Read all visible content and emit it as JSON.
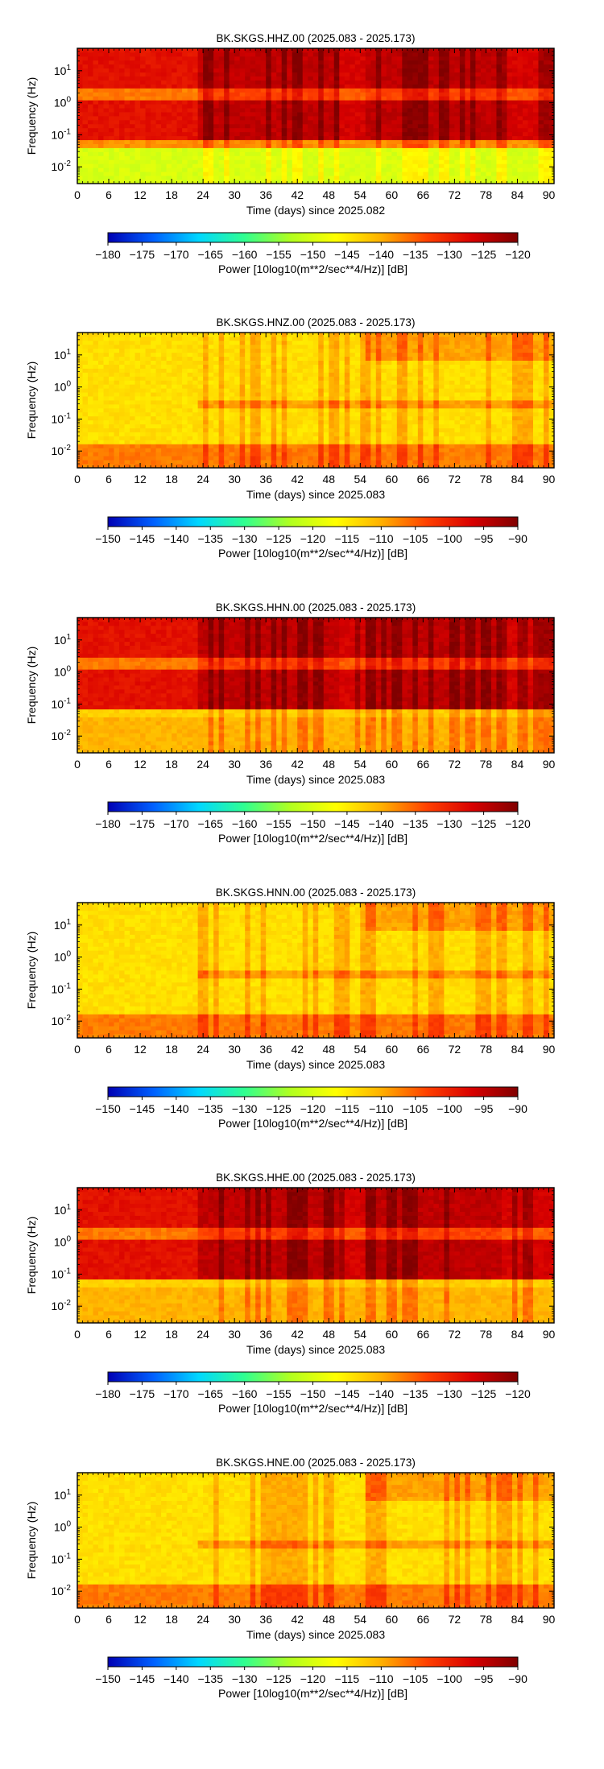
{
  "chart_data": [
    {
      "type": "heatmap",
      "title": "BK.SKGS.HHZ.00 (2025.083 - 2025.173)",
      "xlabel": "Time (days) since 2025.082",
      "ylabel": "Frequency (Hz)",
      "x_ticks": [
        "0",
        "6",
        "12",
        "18",
        "24",
        "30",
        "36",
        "42",
        "48",
        "54",
        "60",
        "66",
        "72",
        "78",
        "84",
        "90"
      ],
      "y_ticks": [
        {
          "base": "10",
          "exp": "1"
        },
        {
          "base": "10",
          "exp": "0"
        },
        {
          "base": "10",
          "exp": "-1"
        },
        {
          "base": "10",
          "exp": "-2"
        }
      ],
      "xlim": [
        0,
        91
      ],
      "ylim_hz": [
        0.003,
        50
      ],
      "yscale": "log",
      "colorbar": {
        "label": "Power [10log10(m**2/sec**4/Hz)] [dB]",
        "ticks": [
          "-180",
          "-175",
          "-170",
          "-165",
          "-160",
          "-155",
          "-150",
          "-145",
          "-140",
          "-135",
          "-130",
          "-125",
          "-120"
        ],
        "min": -180,
        "max": -120
      },
      "pattern": "acc_vert"
    },
    {
      "type": "heatmap",
      "title": "BK.SKGS.HNZ.00 (2025.083 - 2025.173)",
      "xlabel": "Time (days) since 2025.083",
      "ylabel": "Frequency (Hz)",
      "x_ticks": [
        "0",
        "6",
        "12",
        "18",
        "24",
        "30",
        "36",
        "42",
        "48",
        "54",
        "60",
        "66",
        "72",
        "78",
        "84",
        "90"
      ],
      "y_ticks": [
        {
          "base": "10",
          "exp": "1"
        },
        {
          "base": "10",
          "exp": "0"
        },
        {
          "base": "10",
          "exp": "-1"
        },
        {
          "base": "10",
          "exp": "-2"
        }
      ],
      "xlim": [
        0,
        91
      ],
      "ylim_hz": [
        0.003,
        50
      ],
      "yscale": "log",
      "colorbar": {
        "label": "Power [10log10(m**2/sec**4/Hz)] [dB]",
        "ticks": [
          "-150",
          "-145",
          "-140",
          "-135",
          "-130",
          "-125",
          "-120",
          "-115",
          "-110",
          "-105",
          "-100",
          "-95",
          "-90"
        ],
        "min": -150,
        "max": -90
      },
      "pattern": "strong"
    },
    {
      "type": "heatmap",
      "title": "BK.SKGS.HHN.00 (2025.083 - 2025.173)",
      "xlabel": "Time (days) since 2025.083",
      "ylabel": "Frequency (Hz)",
      "x_ticks": [
        "0",
        "6",
        "12",
        "18",
        "24",
        "30",
        "36",
        "42",
        "48",
        "54",
        "60",
        "66",
        "72",
        "78",
        "84",
        "90"
      ],
      "y_ticks": [
        {
          "base": "10",
          "exp": "1"
        },
        {
          "base": "10",
          "exp": "0"
        },
        {
          "base": "10",
          "exp": "-1"
        },
        {
          "base": "10",
          "exp": "-2"
        }
      ],
      "xlim": [
        0,
        91
      ],
      "ylim_hz": [
        0.003,
        50
      ],
      "yscale": "log",
      "colorbar": {
        "label": "Power [10log10(m**2/sec**4/Hz)] [dB]",
        "ticks": [
          "-180",
          "-175",
          "-170",
          "-165",
          "-160",
          "-155",
          "-150",
          "-145",
          "-140",
          "-135",
          "-130",
          "-125",
          "-120"
        ],
        "min": -180,
        "max": -120
      },
      "pattern": "acc_horiz"
    },
    {
      "type": "heatmap",
      "title": "BK.SKGS.HNN.00 (2025.083 - 2025.173)",
      "xlabel": "Time (days) since 2025.083",
      "ylabel": "Frequency (Hz)",
      "x_ticks": [
        "0",
        "6",
        "12",
        "18",
        "24",
        "30",
        "36",
        "42",
        "48",
        "54",
        "60",
        "66",
        "72",
        "78",
        "84",
        "90"
      ],
      "y_ticks": [
        {
          "base": "10",
          "exp": "1"
        },
        {
          "base": "10",
          "exp": "0"
        },
        {
          "base": "10",
          "exp": "-1"
        },
        {
          "base": "10",
          "exp": "-2"
        }
      ],
      "xlim": [
        0,
        91
      ],
      "ylim_hz": [
        0.003,
        50
      ],
      "yscale": "log",
      "colorbar": {
        "label": "Power [10log10(m**2/sec**4/Hz)] [dB]",
        "ticks": [
          "-150",
          "-145",
          "-140",
          "-135",
          "-130",
          "-125",
          "-120",
          "-115",
          "-110",
          "-105",
          "-100",
          "-95",
          "-90"
        ],
        "min": -150,
        "max": -90
      },
      "pattern": "strong"
    },
    {
      "type": "heatmap",
      "title": "BK.SKGS.HHE.00 (2025.083 - 2025.173)",
      "xlabel": "Time (days) since 2025.083",
      "ylabel": "Frequency (Hz)",
      "x_ticks": [
        "0",
        "6",
        "12",
        "18",
        "24",
        "30",
        "36",
        "42",
        "48",
        "54",
        "60",
        "66",
        "72",
        "78",
        "84",
        "90"
      ],
      "y_ticks": [
        {
          "base": "10",
          "exp": "1"
        },
        {
          "base": "10",
          "exp": "0"
        },
        {
          "base": "10",
          "exp": "-1"
        },
        {
          "base": "10",
          "exp": "-2"
        }
      ],
      "xlim": [
        0,
        91
      ],
      "ylim_hz": [
        0.003,
        50
      ],
      "yscale": "log",
      "colorbar": {
        "label": "Power [10log10(m**2/sec**4/Hz)] [dB]",
        "ticks": [
          "-180",
          "-175",
          "-170",
          "-165",
          "-160",
          "-155",
          "-150",
          "-145",
          "-140",
          "-135",
          "-130",
          "-125",
          "-120"
        ],
        "min": -180,
        "max": -120
      },
      "pattern": "acc_horiz"
    },
    {
      "type": "heatmap",
      "title": "BK.SKGS.HNE.00 (2025.083 - 2025.173)",
      "xlabel": "Time (days) since 2025.083",
      "ylabel": "Frequency (Hz)",
      "x_ticks": [
        "0",
        "6",
        "12",
        "18",
        "24",
        "30",
        "36",
        "42",
        "48",
        "54",
        "60",
        "66",
        "72",
        "78",
        "84",
        "90"
      ],
      "y_ticks": [
        {
          "base": "10",
          "exp": "1"
        },
        {
          "base": "10",
          "exp": "0"
        },
        {
          "base": "10",
          "exp": "-1"
        },
        {
          "base": "10",
          "exp": "-2"
        }
      ],
      "xlim": [
        0,
        91
      ],
      "ylim_hz": [
        0.003,
        50
      ],
      "yscale": "log",
      "colorbar": {
        "label": "Power [10log10(m**2/sec**4/Hz)] [dB]",
        "ticks": [
          "-150",
          "-145",
          "-140",
          "-135",
          "-130",
          "-125",
          "-120",
          "-115",
          "-110",
          "-105",
          "-100",
          "-95",
          "-90"
        ],
        "min": -150,
        "max": -90
      },
      "pattern": "strong"
    }
  ],
  "colormap": [
    "#0000b4",
    "#0060ff",
    "#00d8ff",
    "#30ff90",
    "#b0ff20",
    "#ffff00",
    "#ffb000",
    "#ff4000",
    "#d80000",
    "#800000"
  ]
}
